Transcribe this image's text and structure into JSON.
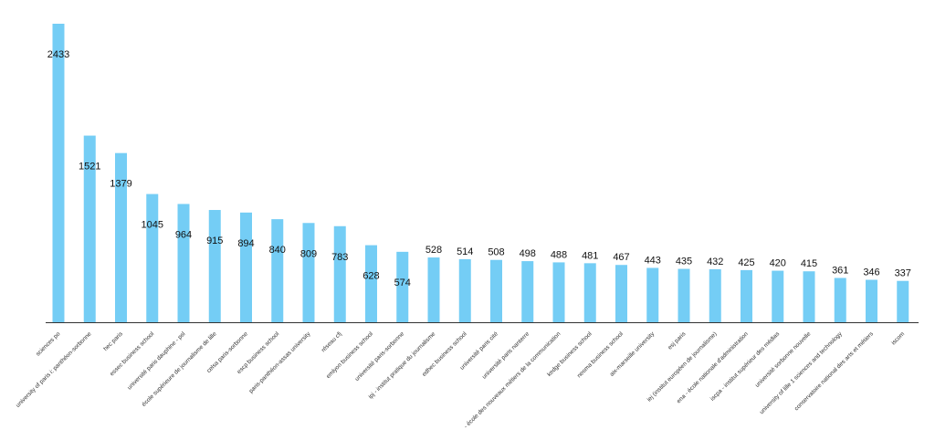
{
  "chart_data": {
    "type": "bar",
    "title": "",
    "xlabel": "",
    "ylabel": "",
    "ylim": [
      0,
      2433
    ],
    "grid": false,
    "bar_color": "#74CDF5",
    "categories": [
      "sciences po",
      "university of paris i: panthéon-sorbonne",
      "hec paris",
      "essec business school",
      "université paris dauphine - psl",
      "école supérieure de journalisme de lille",
      "celsa paris-sorbonne",
      "escp business school",
      "paris-panthéon-assas university",
      "réseau cfj",
      "emlyon business school",
      "université paris-sorbonne",
      "ipj - institut pratique du journalisme",
      "edhec business school",
      "université paris cité",
      "université paris nanterre",
      "- école des nouveaux métiers de la communication",
      "kedge business school",
      "neoma business school",
      "aix-marseille university",
      "esj paris",
      "iej (institut européen de journalisme)",
      "ena - école nationale d'administration",
      "iscpa - institut supérieur des médias",
      "université sorbonne nouvelle",
      "university of lille 1 sciences and technology",
      "conservatoire national des arts et métiers",
      "iscom"
    ],
    "values": [
      2433,
      1521,
      1379,
      1045,
      964,
      915,
      894,
      840,
      809,
      783,
      628,
      574,
      528,
      514,
      508,
      498,
      488,
      481,
      467,
      443,
      435,
      432,
      425,
      420,
      415,
      361,
      346,
      337
    ],
    "label_inside": [
      true,
      true,
      true,
      true,
      true,
      true,
      true,
      true,
      true,
      true,
      true,
      true,
      false,
      false,
      false,
      false,
      false,
      false,
      false,
      false,
      false,
      false,
      false,
      false,
      false,
      false,
      false,
      false
    ]
  }
}
